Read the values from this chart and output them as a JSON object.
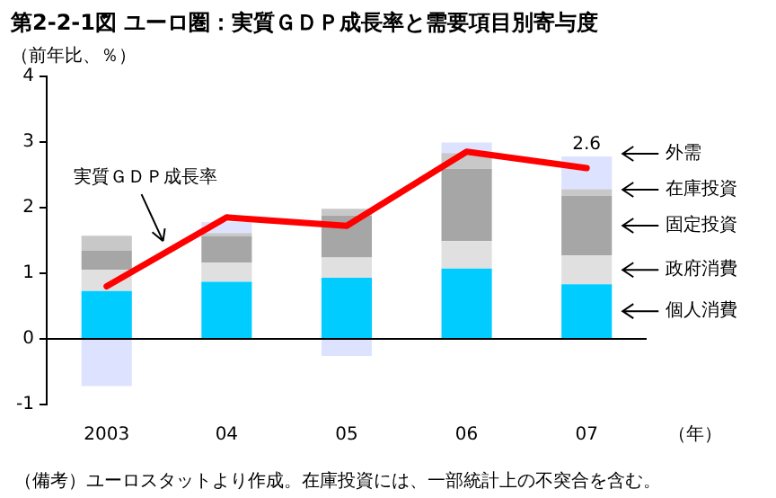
{
  "chart_data": {
    "type": "bar",
    "stacked": true,
    "title": "第2-2-1図 ユーロ圏：実質ＧＤＰ成長率と需要項目別寄与度",
    "ylabel": "（前年比、％）",
    "xlabel": "（年）",
    "categories": [
      "2003",
      "04",
      "05",
      "06",
      "07"
    ],
    "series": [
      {
        "name": "個人消費",
        "color": "#00ccff",
        "values": [
          0.73,
          0.87,
          0.93,
          1.07,
          0.83
        ]
      },
      {
        "name": "政府消費",
        "color": "#e0e0e0",
        "values": [
          0.32,
          0.29,
          0.31,
          0.42,
          0.44
        ]
      },
      {
        "name": "固定投資",
        "color": "#a6a6a6",
        "values": [
          0.29,
          0.4,
          0.64,
          1.1,
          0.91
        ]
      },
      {
        "name": "在庫投資",
        "color": "#c8c8c8",
        "values": [
          0.23,
          0.05,
          0.1,
          0.24,
          0.1
        ]
      },
      {
        "name": "外需",
        "color": "#dde3ff",
        "values": [
          -0.72,
          0.17,
          -0.26,
          0.16,
          0.5
        ]
      },
      {
        "name": "実質ＧＤＰ成長率",
        "type": "line",
        "color": "#ff0000",
        "values": [
          0.8,
          1.85,
          1.72,
          2.85,
          2.6
        ],
        "value_labels": [
          null,
          null,
          null,
          null,
          "2.6"
        ]
      }
    ],
    "ref_lines": [
      {
        "axis": "y",
        "value": 0,
        "color": "#000000"
      }
    ],
    "ylim": [
      -1,
      4
    ],
    "yticks": [
      -1,
      0,
      1,
      2,
      3,
      4
    ],
    "grid": false,
    "legend": false,
    "marker": "none",
    "annotations": [
      "（備考）ユーロスタットより作成。在庫投資には、一部統計上の不突合を含む。"
    ]
  }
}
